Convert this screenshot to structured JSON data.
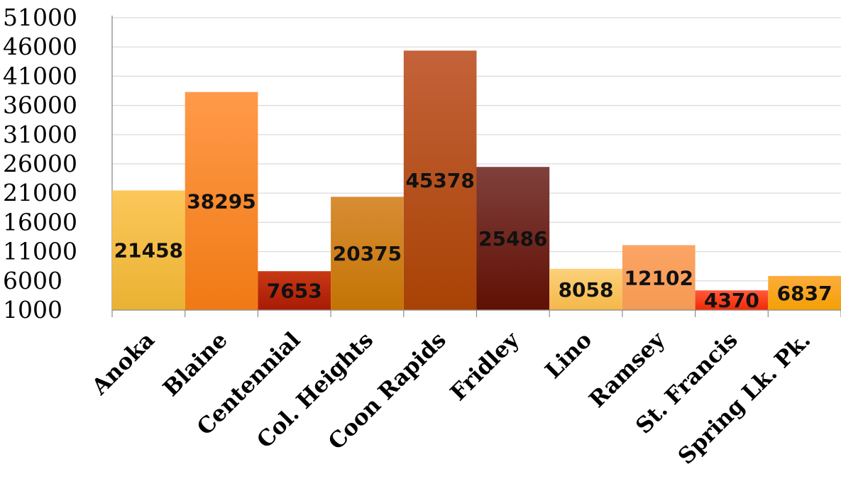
{
  "chart_data": {
    "type": "bar",
    "title": "",
    "xlabel": "",
    "ylabel": "",
    "categories": [
      "Anoka",
      "Blaine",
      "Centennial",
      "Col. Heights",
      "Coon Rapids",
      "Fridley",
      "Lino",
      "Ramsey",
      "St. Francis",
      "Spring Lk. Pk."
    ],
    "values": [
      21458,
      38295,
      7653,
      20375,
      45378,
      25486,
      8058,
      12102,
      4370,
      6837
    ],
    "data_labels": [
      "21458",
      "38295",
      "7653",
      "20375",
      "45378",
      "25486",
      "8058",
      "12102",
      "4370",
      "6837"
    ],
    "ylim": [
      1000,
      51000
    ],
    "yticks": [
      1000,
      6000,
      11000,
      16000,
      21000,
      26000,
      31000,
      36000,
      41000,
      46000,
      51000
    ],
    "ytick_labels": [
      "1000",
      "6000",
      "11000",
      "16000",
      "21000",
      "26000",
      "31000",
      "36000",
      "41000",
      "46000",
      "51000"
    ],
    "grid": true,
    "legend": "none",
    "bar_colors": [
      [
        "#fcc75a",
        "#eab233"
      ],
      [
        "#ff9a4a",
        "#f07a14"
      ],
      [
        "#c83a14",
        "#a81a04"
      ],
      [
        "#d88d34",
        "#c47404"
      ],
      [
        "#c4623a",
        "#a84204"
      ],
      [
        "#80403c",
        "#601004"
      ],
      [
        "#fcd07a",
        "#f4b84a"
      ],
      [
        "#fca464",
        "#f49a54"
      ],
      [
        "#ff5a3a",
        "#f02a04"
      ],
      [
        "#fcac3c",
        "#f4a004"
      ]
    ]
  }
}
